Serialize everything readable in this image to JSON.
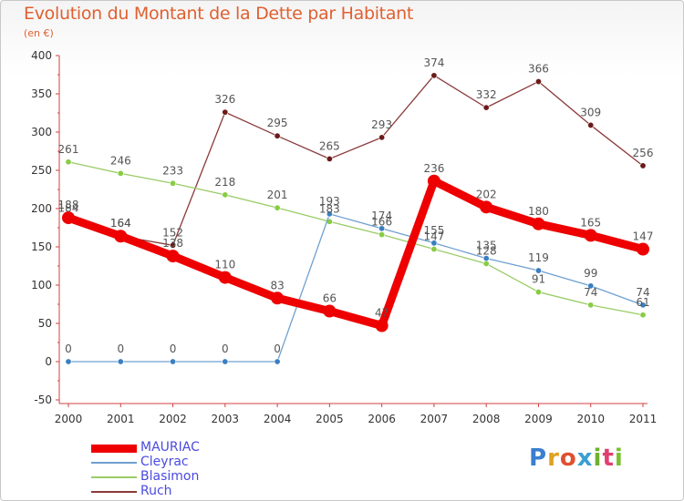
{
  "title": "Evolution du Montant de la Dette par Habitant",
  "subtitle": "(en €)",
  "logo": {
    "text": "Proxiti",
    "colors": [
      "#3a7fd0",
      "#e0a020",
      "#e05030",
      "#3a9fd0",
      "#70b030",
      "#e04070",
      "#7ac030"
    ]
  },
  "chart_data": {
    "type": "line",
    "categories": [
      "2000",
      "2001",
      "2002",
      "2003",
      "2004",
      "2005",
      "2006",
      "2007",
      "2008",
      "2009",
      "2010",
      "2011"
    ],
    "ylim": [
      -50,
      400
    ],
    "yticks": [
      "-50",
      "0",
      "50",
      "100",
      "150",
      "200",
      "250",
      "300",
      "350",
      "400"
    ],
    "ytick_values": [
      -50,
      0,
      50,
      100,
      150,
      200,
      250,
      300,
      350,
      400
    ],
    "grid": false,
    "legend_position": "bottom-left",
    "series": [
      {
        "name": "MAURIAC",
        "color": "#ee0000",
        "values": [
          188,
          164,
          138,
          110,
          83,
          66,
          47,
          236,
          202,
          180,
          165,
          147
        ],
        "labels": [
          "188",
          "164",
          "138",
          "110",
          "83",
          "66",
          "47",
          "236",
          "202",
          "180",
          "165",
          "147"
        ],
        "emphasis": true
      },
      {
        "name": "Cleyrac",
        "color": "#6fa0d0",
        "marker": "#3a7fc0",
        "values": [
          0,
          0,
          0,
          0,
          0,
          193,
          174,
          155,
          135,
          119,
          99,
          74
        ],
        "labels": [
          "0",
          "0",
          "0",
          "0",
          "0",
          "193",
          "174",
          "155",
          "135",
          "119",
          "99",
          "74"
        ]
      },
      {
        "name": "Blasimon",
        "color": "#99cc66",
        "marker": "#88cc44",
        "values": [
          261,
          246,
          233,
          218,
          201,
          183,
          166,
          147,
          128,
          91,
          74,
          61
        ],
        "labels": [
          "261",
          "246",
          "233",
          "218",
          "201",
          "183",
          "166",
          "147",
          "128",
          "91",
          "74",
          "61"
        ]
      },
      {
        "name": "Ruch",
        "color": "#8b3a3a",
        "marker": "#6b1a1a",
        "values": [
          184,
          164,
          152,
          326,
          295,
          265,
          293,
          374,
          332,
          366,
          309,
          256
        ],
        "labels": [
          "184",
          "164",
          "152",
          "326",
          "295",
          "265",
          "293",
          "374",
          "332",
          "366",
          "309",
          "256"
        ]
      }
    ]
  }
}
